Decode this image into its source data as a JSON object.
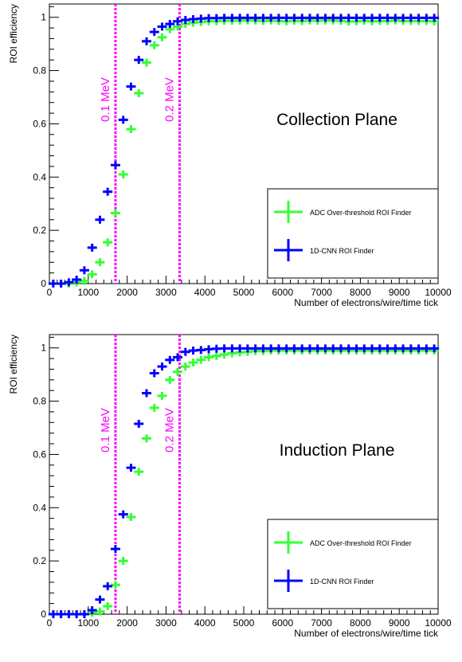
{
  "chart_data": [
    {
      "type": "scatter",
      "plot_label": "Collection Plane",
      "xlabel": "Number of electrons/wire/time tick",
      "ylabel": "ROI efficiency",
      "xlim": [
        0,
        10000
      ],
      "ylim": [
        0,
        1.05
      ],
      "x_ticks": [
        "0",
        "1000",
        "2000",
        "3000",
        "4000",
        "5000",
        "6000",
        "7000",
        "8000",
        "9000",
        "10000"
      ],
      "y_ticks": [
        "0",
        "0.2",
        "0.4",
        "0.6",
        "0.8",
        "1"
      ],
      "vlines": [
        {
          "x": 1700,
          "label": "0.1 MeV",
          "color": "#ff00ff"
        },
        {
          "x": 3350,
          "label": "0.2 MeV",
          "color": "#ff00ff"
        }
      ],
      "legend_position": "right-middle",
      "series": [
        {
          "name": "ADC Over-threshold ROI Finder",
          "color": "#33ff33",
          "x": [
            100,
            300,
            500,
            700,
            900,
            1100,
            1300,
            1500,
            1700,
            1900,
            2100,
            2300,
            2500,
            2700,
            2900,
            3100,
            3300,
            3500,
            3700,
            3900,
            4100,
            4300,
            4500,
            4700,
            4900,
            5100,
            5300,
            5500,
            5700,
            5900,
            6100,
            6300,
            6500,
            6700,
            6900,
            7100,
            7300,
            7500,
            7700,
            7900,
            8100,
            8300,
            8500,
            8700,
            8900,
            9100,
            9300,
            9500,
            9700,
            9900
          ],
          "y": [
            0.0,
            0.0,
            0.0,
            0.005,
            0.01,
            0.035,
            0.08,
            0.155,
            0.265,
            0.41,
            0.58,
            0.715,
            0.83,
            0.895,
            0.925,
            0.955,
            0.965,
            0.975,
            0.98,
            0.982,
            0.985,
            0.985,
            0.987,
            0.987,
            0.988,
            0.988,
            0.988,
            0.986,
            0.988,
            0.986,
            0.985,
            0.987,
            0.986,
            0.988,
            0.987,
            0.988,
            0.988,
            0.987,
            0.984,
            0.985,
            0.987,
            0.985,
            0.986,
            0.986,
            0.988,
            0.986,
            0.986,
            0.986,
            0.986,
            0.985
          ]
        },
        {
          "name": "1D-CNN ROI Finder",
          "color": "#0000ff",
          "x": [
            100,
            300,
            500,
            700,
            900,
            1100,
            1300,
            1500,
            1700,
            1900,
            2100,
            2300,
            2500,
            2700,
            2900,
            3100,
            3300,
            3500,
            3700,
            3900,
            4100,
            4300,
            4500,
            4700,
            4900,
            5100,
            5300,
            5500,
            5700,
            5900,
            6100,
            6300,
            6500,
            6700,
            6900,
            7100,
            7300,
            7500,
            7700,
            7900,
            8100,
            8300,
            8500,
            8700,
            8900,
            9100,
            9300,
            9500,
            9700,
            9900
          ],
          "y": [
            0.0,
            0.0,
            0.005,
            0.015,
            0.05,
            0.135,
            0.24,
            0.345,
            0.445,
            0.615,
            0.74,
            0.84,
            0.91,
            0.945,
            0.965,
            0.975,
            0.985,
            0.99,
            0.993,
            0.995,
            0.997,
            0.997,
            0.998,
            0.998,
            0.998,
            0.998,
            0.998,
            0.998,
            0.998,
            0.998,
            0.998,
            0.998,
            0.998,
            0.998,
            0.998,
            0.998,
            0.998,
            0.998,
            0.998,
            0.998,
            0.998,
            0.998,
            0.998,
            0.998,
            0.998,
            0.998,
            0.998,
            0.998,
            0.998,
            0.998
          ]
        }
      ]
    },
    {
      "type": "scatter",
      "plot_label": "Induction Plane",
      "xlabel": "Number of electrons/wire/time tick",
      "ylabel": "ROI efficiency",
      "xlim": [
        0,
        10000
      ],
      "ylim": [
        0,
        1.05
      ],
      "x_ticks": [
        "0",
        "1000",
        "2000",
        "3000",
        "4000",
        "5000",
        "6000",
        "7000",
        "8000",
        "9000",
        "10000"
      ],
      "y_ticks": [
        "0",
        "0.2",
        "0.4",
        "0.6",
        "0.8",
        "1"
      ],
      "vlines": [
        {
          "x": 1700,
          "label": "0.1 MeV",
          "color": "#ff00ff"
        },
        {
          "x": 3350,
          "label": "0.2 MeV",
          "color": "#ff00ff"
        }
      ],
      "legend_position": "right-middle",
      "series": [
        {
          "name": "ADC Over-threshold ROI Finder",
          "color": "#33ff33",
          "x": [
            100,
            300,
            500,
            700,
            900,
            1100,
            1300,
            1500,
            1700,
            1900,
            2100,
            2300,
            2500,
            2700,
            2900,
            3100,
            3300,
            3500,
            3700,
            3900,
            4100,
            4300,
            4500,
            4700,
            4900,
            5100,
            5300,
            5500,
            5700,
            5900,
            6100,
            6300,
            6500,
            6700,
            6900,
            7100,
            7300,
            7500,
            7700,
            7900,
            8100,
            8300,
            8500,
            8700,
            8900,
            9100,
            9300,
            9500,
            9700,
            9900
          ],
          "y": [
            0.0,
            0.0,
            0.0,
            0.0,
            0.0,
            0.005,
            0.01,
            0.03,
            0.11,
            0.2,
            0.365,
            0.535,
            0.66,
            0.775,
            0.82,
            0.88,
            0.91,
            0.93,
            0.945,
            0.955,
            0.965,
            0.97,
            0.975,
            0.98,
            0.983,
            0.985,
            0.988,
            0.988,
            0.99,
            0.99,
            0.99,
            0.99,
            0.99,
            0.99,
            0.99,
            0.99,
            0.99,
            0.99,
            0.99,
            0.99,
            0.99,
            0.99,
            0.99,
            0.99,
            0.99,
            0.99,
            0.99,
            0.99,
            0.99,
            0.99
          ]
        },
        {
          "name": "1D-CNN ROI Finder",
          "color": "#0000ff",
          "x": [
            100,
            300,
            500,
            700,
            900,
            1100,
            1300,
            1500,
            1700,
            1900,
            2100,
            2300,
            2500,
            2700,
            2900,
            3100,
            3300,
            3500,
            3700,
            3900,
            4100,
            4300,
            4500,
            4700,
            4900,
            5100,
            5300,
            5500,
            5700,
            5900,
            6100,
            6300,
            6500,
            6700,
            6900,
            7100,
            7300,
            7500,
            7700,
            7900,
            8100,
            8300,
            8500,
            8700,
            8900,
            9100,
            9300,
            9500,
            9700,
            9900
          ],
          "y": [
            0.0,
            0.0,
            0.0,
            0.0,
            0.0,
            0.015,
            0.055,
            0.105,
            0.245,
            0.375,
            0.55,
            0.715,
            0.83,
            0.905,
            0.93,
            0.955,
            0.965,
            0.985,
            0.99,
            0.992,
            0.995,
            0.997,
            0.998,
            0.998,
            0.998,
            0.998,
            0.998,
            0.998,
            0.998,
            0.998,
            0.998,
            0.998,
            0.998,
            0.998,
            0.998,
            0.998,
            0.998,
            0.998,
            0.998,
            0.998,
            0.998,
            0.998,
            0.998,
            0.998,
            0.998,
            0.998,
            0.998,
            0.998,
            0.998,
            0.998
          ]
        }
      ]
    }
  ]
}
